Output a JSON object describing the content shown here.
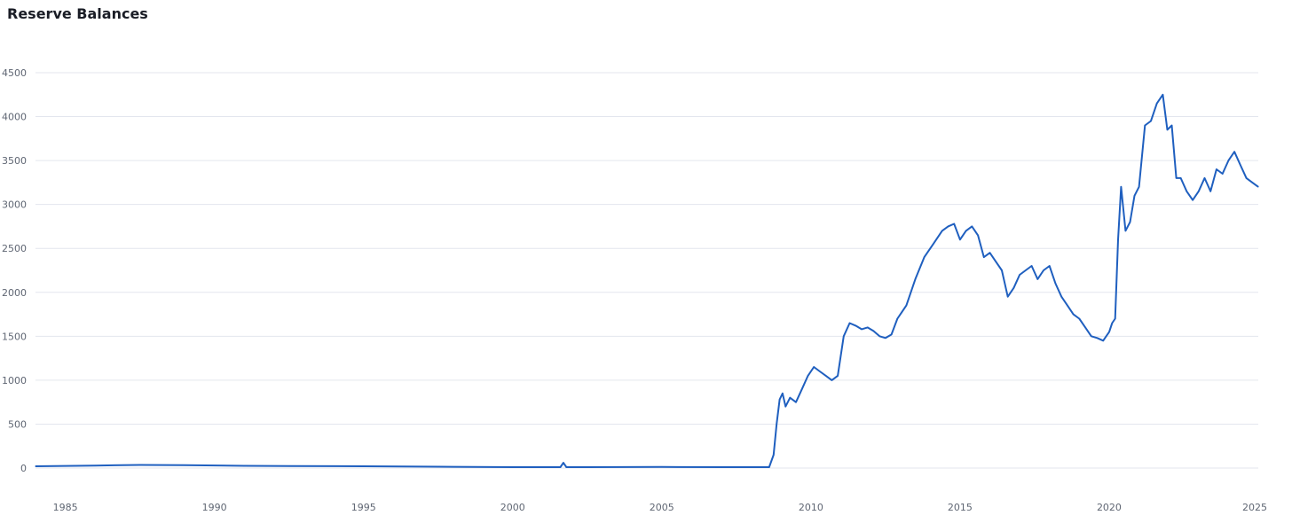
{
  "chart_data": {
    "type": "line",
    "title": "Reserve Balances",
    "xlabel": "",
    "ylabel": "",
    "xlim": [
      1984,
      2025
    ],
    "ylim": [
      0,
      4500
    ],
    "grid": true,
    "legend": "none",
    "y_ticks": [
      0,
      500,
      1000,
      1500,
      2000,
      2500,
      3000,
      3500,
      4000,
      4500
    ],
    "x_ticks": [
      1985,
      1990,
      1995,
      2000,
      2005,
      2010,
      2015,
      2020,
      2025
    ],
    "colors": {
      "line": "#1f5fbf",
      "grid": "#e3e6ee",
      "axis_text": "#5f6673",
      "title": "#1a1d26"
    },
    "series": [
      {
        "x": [
          1984.0,
          1986.0,
          1987.5,
          1989.0,
          1991.0,
          1992.5,
          1995.0,
          1997.5,
          2000.0,
          2001.6,
          2001.7,
          2001.8,
          2002.5,
          2005.0,
          2007.0,
          2008.6,
          2008.75,
          2008.85,
          2008.95,
          2009.05,
          2009.15,
          2009.3,
          2009.5,
          2009.7,
          2009.9,
          2010.1,
          2010.3,
          2010.5,
          2010.7,
          2010.9,
          2011.1,
          2011.3,
          2011.5,
          2011.7,
          2011.9,
          2012.1,
          2012.3,
          2012.5,
          2012.7,
          2012.9,
          2013.2,
          2013.5,
          2013.8,
          2014.1,
          2014.4,
          2014.6,
          2014.8,
          2015.0,
          2015.2,
          2015.4,
          2015.6,
          2015.8,
          2016.0,
          2016.2,
          2016.4,
          2016.6,
          2016.8,
          2017.0,
          2017.2,
          2017.4,
          2017.6,
          2017.8,
          2018.0,
          2018.2,
          2018.4,
          2018.6,
          2018.8,
          2019.0,
          2019.2,
          2019.4,
          2019.6,
          2019.8,
          2020.0,
          2020.1,
          2020.2,
          2020.3,
          2020.4,
          2020.55,
          2020.7,
          2020.85,
          2021.0,
          2021.2,
          2021.4,
          2021.6,
          2021.8,
          2021.95,
          2022.1,
          2022.25,
          2022.4,
          2022.6,
          2022.8,
          2023.0,
          2023.2,
          2023.4,
          2023.6,
          2023.8,
          2024.0,
          2024.2,
          2024.4,
          2024.6,
          2024.8,
          2025.0
        ],
        "y": [
          20,
          28,
          35,
          32,
          25,
          22,
          20,
          15,
          10,
          10,
          60,
          10,
          10,
          12,
          10,
          10,
          150,
          500,
          780,
          850,
          700,
          800,
          750,
          900,
          1050,
          1150,
          1100,
          1050,
          1000,
          1050,
          1500,
          1650,
          1620,
          1580,
          1600,
          1560,
          1500,
          1480,
          1520,
          1700,
          1850,
          2150,
          2400,
          2550,
          2700,
          2750,
          2780,
          2600,
          2700,
          2750,
          2650,
          2400,
          2450,
          2350,
          2250,
          1950,
          2050,
          2200,
          2250,
          2300,
          2150,
          2250,
          2300,
          2100,
          1950,
          1850,
          1750,
          1700,
          1600,
          1500,
          1480,
          1450,
          1550,
          1650,
          1700,
          2600,
          3200,
          2700,
          2800,
          3100,
          3200,
          3900,
          3950,
          4150,
          4250,
          3850,
          3900,
          3300,
          3300,
          3150,
          3050,
          3150,
          3300,
          3150,
          3400,
          3350,
          3500,
          3600,
          3450,
          3300,
          3250,
          3200
        ]
      }
    ]
  }
}
